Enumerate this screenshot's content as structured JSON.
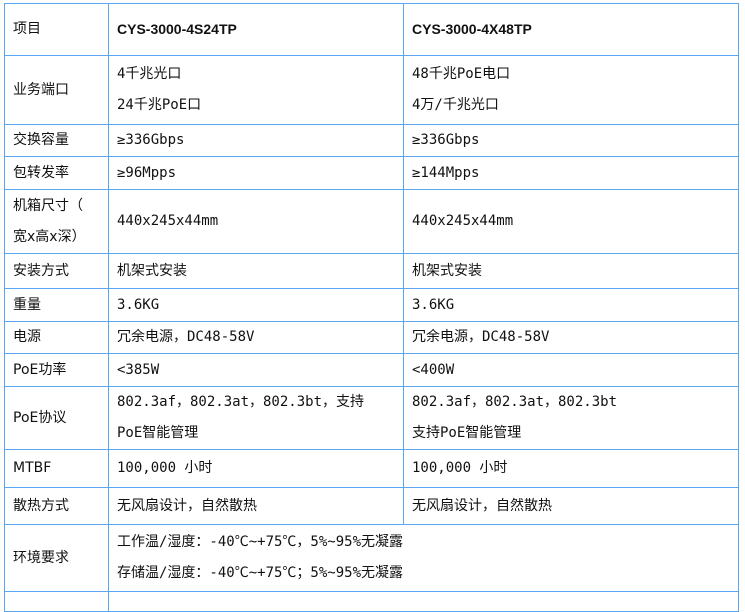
{
  "header": {
    "label": "项目",
    "models": [
      "CYS-3000-4S24TP",
      "CYS-3000-4X48TP"
    ]
  },
  "rows": [
    {
      "label": "业务端口",
      "a": [
        "4千兆光口",
        "24千兆PoE口"
      ],
      "b": [
        "48千兆PoE电口",
        "4万/千兆光口"
      ]
    },
    {
      "label": "交换容量",
      "a": [
        "≥336Gbps"
      ],
      "b": [
        "≥336Gbps"
      ]
    },
    {
      "label": "包转发率",
      "a": [
        "≥96Mpps"
      ],
      "b": [
        "≥144Mpps"
      ]
    },
    {
      "label_lines": [
        "机箱尺寸（",
        "宽x高x深）"
      ],
      "a": [
        "440x245x44mm"
      ],
      "b": [
        "440x245x44mm"
      ]
    },
    {
      "label": "安装方式",
      "a": [
        "机架式安装"
      ],
      "b": [
        "机架式安装"
      ]
    },
    {
      "label": "重量",
      "a": [
        "3.6KG"
      ],
      "b": [
        "3.6KG"
      ]
    },
    {
      "label": "电源",
      "a": [
        "冗余电源，DC48-58V"
      ],
      "b": [
        "冗余电源，DC48-58V"
      ]
    },
    {
      "label": "PoE功率",
      "a": [
        "<385W"
      ],
      "b": [
        "<400W"
      ]
    },
    {
      "label": "PoE协议",
      "a": [
        "802.3af，802.3at，802.3bt，支持",
        "PoE智能管理"
      ],
      "b": [
        "802.3af，802.3at，802.3bt",
        "支持PoE智能管理"
      ]
    },
    {
      "label": "MTBF",
      "a": [
        "100,000 小时"
      ],
      "b": [
        "100,000 小时"
      ]
    },
    {
      "label": "散热方式",
      "a": [
        "无风扇设计，自然散热"
      ],
      "b": [
        "无风扇设计，自然散热"
      ]
    }
  ],
  "env": {
    "label": "环境要求",
    "lines": [
      "工作温/湿度：-40℃~+75℃，5%~95%无凝露",
      "存储温/湿度：-40℃~+75℃；5%~95%无凝露"
    ]
  },
  "colors": {
    "border": "#5aa6f2"
  }
}
